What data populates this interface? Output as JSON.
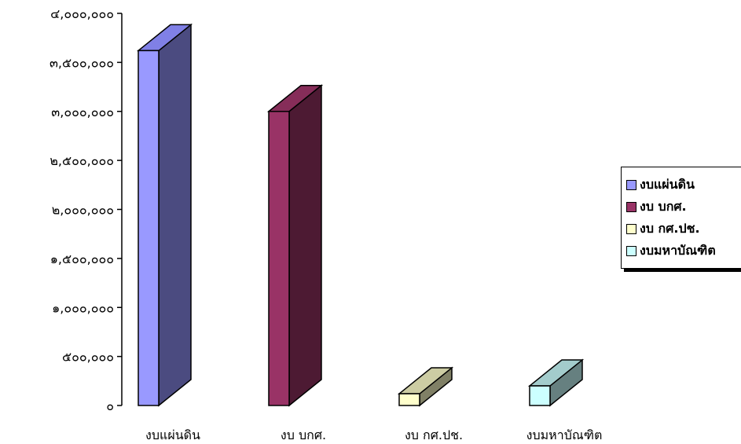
{
  "chart_data": {
    "type": "bar",
    "categories": [
      "งบแผ่นดิน",
      "งบ บกศ.",
      "งบ กศ.ปช.",
      "งบมหาบัณฑิต"
    ],
    "values": [
      3620000,
      3000000,
      120000,
      200000
    ],
    "ylim": [
      0,
      4000000
    ],
    "yticks": [
      0,
      500000,
      1000000,
      1500000,
      2000000,
      2500000,
      3000000,
      3500000,
      4000000
    ],
    "ytick_labels": [
      "๐",
      "๕๐๐,๐๐๐",
      "๑,๐๐๐,๐๐๐",
      "๑,๕๐๐,๐๐๐",
      "๒,๐๐๐,๐๐๐",
      "๒,๕๐๐,๐๐๐",
      "๓,๐๐๐,๐๐๐",
      "๓,๕๐๐,๐๐๐",
      "๔,๐๐๐,๐๐๐"
    ],
    "legend_position": "right",
    "grid": false,
    "colors": [
      {
        "front": "#9999ff",
        "side": "#4b4b80",
        "top": "#8080e6"
      },
      {
        "front": "#993366",
        "side": "#4d1a33",
        "top": "#862d59"
      },
      {
        "front": "#ffffcc",
        "side": "#808066",
        "top": "#cccca3"
      },
      {
        "front": "#ccffff",
        "side": "#668080",
        "top": "#a3cccc"
      }
    ]
  },
  "legend": {
    "items": [
      "งบแผ่นดิน",
      "งบ บกศ.",
      "งบ กศ.ปช.",
      "งบมหาบัณฑิต"
    ]
  }
}
